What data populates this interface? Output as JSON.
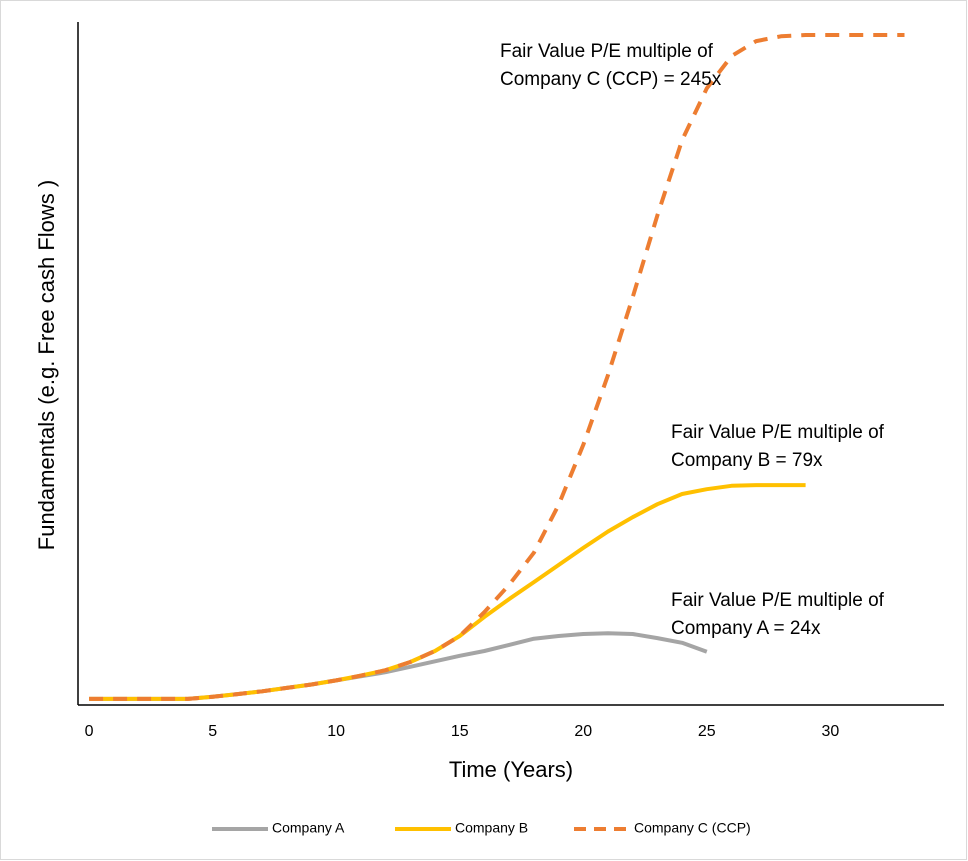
{
  "chart_data": {
    "type": "line",
    "xlabel": "Time (Years)",
    "ylabel": "Fundamentals (e.g. Free cash Flows )",
    "x": [
      0,
      1,
      2,
      3,
      4,
      5,
      6,
      7,
      8,
      9,
      10,
      11,
      12,
      13,
      14,
      15,
      16,
      17,
      18,
      19,
      20,
      21,
      22,
      23,
      24,
      25,
      26,
      27,
      28,
      29,
      30,
      31,
      32,
      33
    ],
    "series": [
      {
        "name": "Company A",
        "color": "#a5a5a5",
        "dash": false,
        "values": [
          0.9,
          0.9,
          0.9,
          0.9,
          0.9,
          1.2,
          1.6,
          2.0,
          2.5,
          3.0,
          3.6,
          4.2,
          4.8,
          5.6,
          6.4,
          7.2,
          7.9,
          8.8,
          9.7,
          10.1,
          10.4,
          10.5,
          10.4,
          9.8,
          9.1,
          7.8,
          null,
          null,
          null,
          null,
          null,
          null,
          null,
          null
        ]
      },
      {
        "name": "Company B",
        "color": "#ffc000",
        "dash": false,
        "values": [
          0.9,
          0.9,
          0.9,
          0.9,
          0.9,
          1.2,
          1.6,
          2.0,
          2.5,
          3.0,
          3.6,
          4.3,
          5.1,
          6.3,
          7.9,
          10.1,
          12.9,
          15.5,
          18.0,
          20.5,
          23.0,
          25.4,
          27.5,
          29.4,
          30.9,
          31.6,
          32.1,
          32.2,
          32.2,
          32.2,
          null,
          null,
          null,
          null
        ]
      },
      {
        "name": "Company C (CCP)",
        "color": "#ed7d31",
        "dash": true,
        "values": [
          0.9,
          0.9,
          0.9,
          0.9,
          0.9,
          1.2,
          1.6,
          2.0,
          2.5,
          3.0,
          3.6,
          4.3,
          5.1,
          6.3,
          7.9,
          10.1,
          13.6,
          17.6,
          22.3,
          29.3,
          38.1,
          48.3,
          59.7,
          71.7,
          82.7,
          90.3,
          95.0,
          97.2,
          97.9,
          98.1,
          98.1,
          98.1,
          98.1,
          98.1
        ]
      }
    ],
    "annotations": [
      {
        "lines": [
          "Fair Value P/E multiple of",
          "Company C (CCP) = 245x"
        ]
      },
      {
        "lines": [
          "Fair Value P/E multiple of",
          "Company B = 79x"
        ]
      },
      {
        "lines": [
          "Fair Value P/E multiple of",
          "Company A = 24x"
        ]
      }
    ],
    "xlim": [
      -0.45,
      34.6
    ],
    "ylim": [
      0,
      100
    ],
    "xticks": [
      0,
      5,
      10,
      15,
      20,
      25,
      30
    ],
    "legend": "bottom",
    "grid": false
  }
}
